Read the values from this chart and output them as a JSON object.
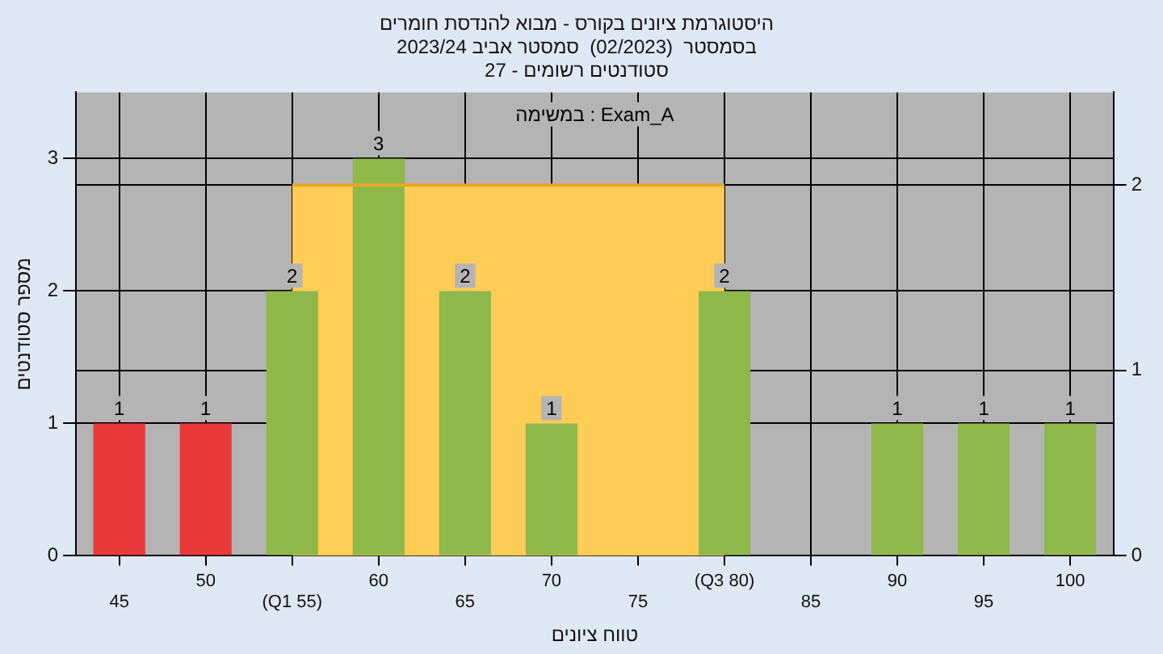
{
  "chart_data": {
    "type": "bar",
    "title": [
      "היסטוגרמת ציונים בקורס - מבוא להנדסת חומרים",
      "בסמסטר  (02/2023)  סמסטר אביב 2023/24",
      "סטודנטים רשומים - 27"
    ],
    "xlabel": "טווח ציונים",
    "ylabel": "מספר סטודנטים",
    "annotations": [
      "במשימה : Exam_A"
    ],
    "categories": [
      "45",
      "50",
      "(Q1 55)",
      "60",
      "65",
      "70",
      "75",
      "(Q3 80)",
      "85",
      "90",
      "95",
      "100"
    ],
    "series": [
      {
        "type": "area",
        "axis": "y2",
        "color": "#ffcc55",
        "values": [
          null,
          null,
          2,
          2,
          2,
          2,
          2,
          2,
          null,
          null,
          null,
          null
        ]
      },
      {
        "colors": [
          "#e83a3a",
          "#e83a3a",
          "#8fb84a",
          "#8fb84a",
          "#8fb84a",
          "#8fb84a",
          "#8fb84a",
          "#8fb84a",
          "#8fb84a",
          "#8fb84a",
          "#8fb84a",
          "#8fb84a"
        ],
        "values": [
          1,
          1,
          2,
          3,
          2,
          1,
          0,
          2,
          0,
          1,
          1,
          1
        ],
        "value_labels": [
          "1",
          "1",
          "2",
          "3",
          "2",
          "1",
          null,
          "2",
          null,
          "1",
          "1",
          "1"
        ]
      }
    ],
    "ylim": [
      0,
      3.5
    ],
    "yticks": [
      0,
      1,
      2,
      3
    ],
    "y2lim": [
      0,
      2.5
    ],
    "y2ticks": [
      0,
      1,
      2
    ],
    "grid": true,
    "legend": false
  }
}
